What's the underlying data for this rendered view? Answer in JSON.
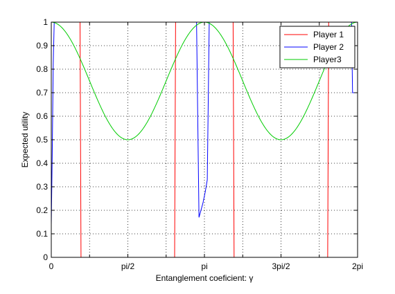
{
  "chart_data": {
    "type": "line",
    "xlabel": "Entanglement coeficient: γ",
    "ylabel": "Expected utility",
    "xlim": [
      0,
      6.2832
    ],
    "ylim": [
      0,
      1
    ],
    "grid": true,
    "legend_position": "top-right",
    "x_ticks": [
      {
        "value": 0,
        "label": "0"
      },
      {
        "value": 1.5708,
        "label": "pi/2"
      },
      {
        "value": 3.1416,
        "label": "pi"
      },
      {
        "value": 4.7124,
        "label": "3pi/2"
      },
      {
        "value": 6.2832,
        "label": "2pi"
      }
    ],
    "y_ticks": [
      {
        "value": 0,
        "label": "0"
      },
      {
        "value": 0.1,
        "label": "0.1"
      },
      {
        "value": 0.2,
        "label": "0.2"
      },
      {
        "value": 0.3,
        "label": "0.3"
      },
      {
        "value": 0.4,
        "label": "0.4"
      },
      {
        "value": 0.5,
        "label": "0.5"
      },
      {
        "value": 0.6,
        "label": "0.6"
      },
      {
        "value": 0.7,
        "label": "0.7"
      },
      {
        "value": 0.8,
        "label": "0.8"
      },
      {
        "value": 0.9,
        "label": "0.9"
      },
      {
        "value": 1,
        "label": "1"
      }
    ],
    "series": [
      {
        "name": "Player 1",
        "color": "#ff0000",
        "x": [
          0,
          0.59,
          0.61,
          2.53,
          2.55,
          3.73,
          3.75,
          5.67,
          5.69,
          6.2832
        ],
        "y": [
          1,
          1,
          0,
          0,
          1,
          1,
          0,
          0,
          1,
          1
        ]
      },
      {
        "name": "Player 2",
        "color": "#0000ff",
        "x": [
          0,
          0.02,
          0.04,
          0.06,
          0.08,
          0.1,
          2.98,
          3.03,
          3.07,
          3.11,
          3.16,
          3.2,
          3.24,
          3.28,
          3.3,
          6.16,
          6.18,
          6.2832
        ],
        "y": [
          0.14,
          0.45,
          0.82,
          1,
          1,
          1,
          1,
          0.17,
          0.2,
          0.23,
          0.28,
          0.33,
          1,
          1,
          1,
          1,
          0.7,
          0.7
        ]
      },
      {
        "name": "Player3",
        "color": "#00cc00",
        "function": "0.75 + 0.25*cos(2x)",
        "x_range": [
          0,
          6.2832
        ],
        "samples": 241
      }
    ]
  }
}
